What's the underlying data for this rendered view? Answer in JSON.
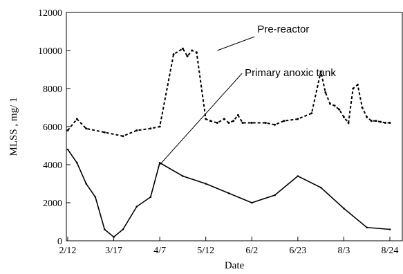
{
  "chart_data": {
    "type": "line",
    "title": "",
    "xlabel": "Date",
    "ylabel": "MLSS , mg/ 1",
    "ylim": [
      0,
      12000
    ],
    "y_ticks": [
      "0",
      "2000",
      "4000",
      "6000",
      "8000",
      "10000",
      "12000"
    ],
    "x_ticks": [
      "2/12",
      "3/17",
      "4/7",
      "5/12",
      "6/2",
      "6/23",
      "8/3",
      "8/24"
    ],
    "grid": false,
    "legend": "none",
    "annotations": [
      {
        "text": "Pre-reactor",
        "series": "pre_reactor",
        "target_x": 3.25,
        "target_y": 10000
      },
      {
        "text": "Primary anoxic tank",
        "series": "primary_anoxic",
        "target_x": 2.0,
        "target_y": 4000
      }
    ],
    "series": [
      {
        "key": "pre_reactor",
        "style": "dashed",
        "x": [
          0.0,
          0.2,
          0.4,
          0.8,
          1.2,
          1.5,
          1.8,
          2.0,
          2.3,
          2.5,
          2.6,
          2.7,
          2.8,
          3.0,
          3.1,
          3.25,
          3.4,
          3.5,
          3.6,
          3.7,
          3.8,
          4.0,
          4.3,
          4.5,
          4.7,
          5.0,
          5.3,
          5.5,
          5.6,
          5.7,
          5.8,
          5.9,
          6.0,
          6.1,
          6.2,
          6.3,
          6.4,
          6.5,
          6.6,
          6.7,
          6.8,
          6.9,
          7.0
        ],
        "y": [
          5800,
          6400,
          5900,
          5700,
          5500,
          5800,
          5900,
          6000,
          9800,
          10100,
          9700,
          10000,
          9900,
          6400,
          6300,
          6200,
          6400,
          6200,
          6300,
          6600,
          6200,
          6200,
          6200,
          6100,
          6300,
          6400,
          6700,
          8900,
          7800,
          7200,
          7100,
          6900,
          6500,
          6200,
          8000,
          8200,
          7000,
          6500,
          6300,
          6300,
          6250,
          6200,
          6200
        ]
      },
      {
        "key": "primary_anoxic",
        "style": "solid",
        "x": [
          0.0,
          0.2,
          0.4,
          0.6,
          0.8,
          1.0,
          1.2,
          1.5,
          1.8,
          2.0,
          2.5,
          3.0,
          3.5,
          4.0,
          4.5,
          5.0,
          5.5,
          6.0,
          6.5,
          7.0
        ],
        "y": [
          4800,
          4100,
          3000,
          2300,
          600,
          200,
          600,
          1800,
          2300,
          4100,
          3400,
          3000,
          2500,
          2000,
          2400,
          3400,
          2800,
          1700,
          700,
          600
        ]
      }
    ]
  }
}
